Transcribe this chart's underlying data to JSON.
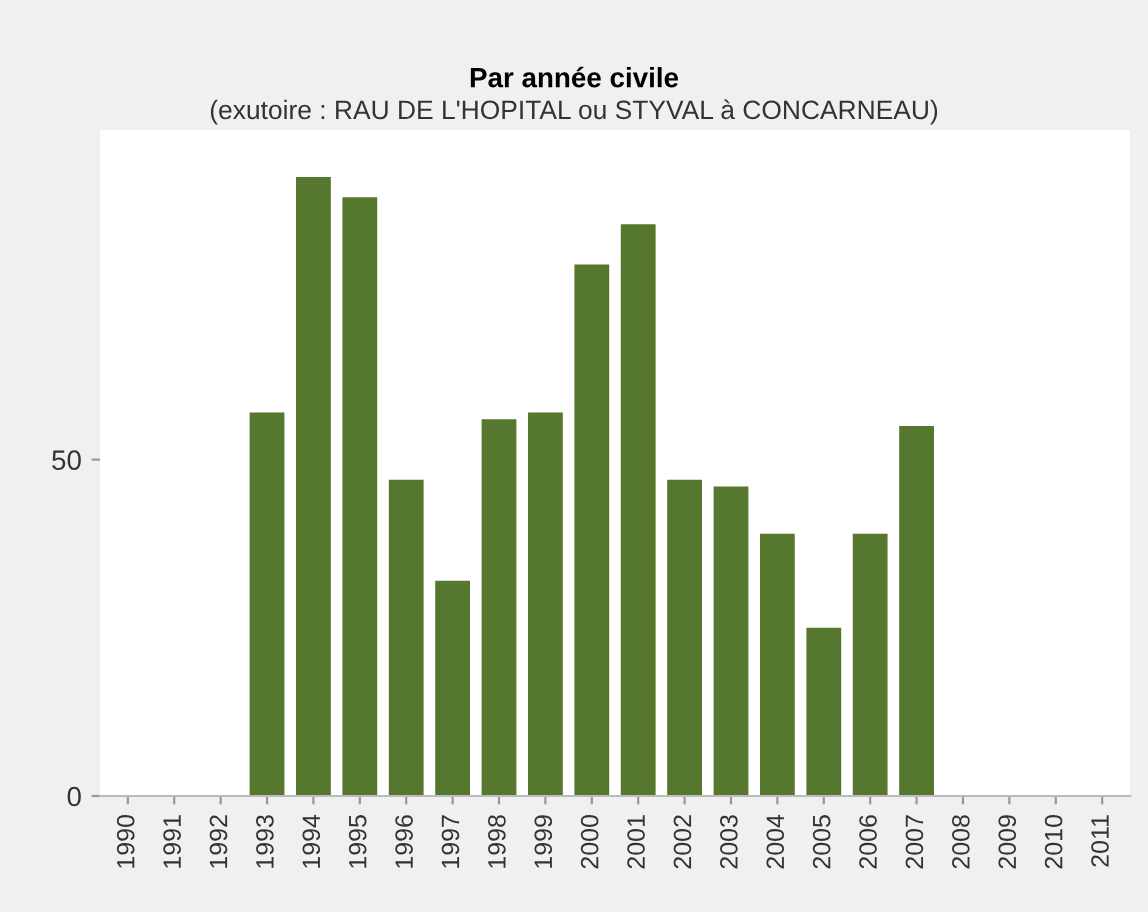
{
  "chart_data": {
    "type": "bar",
    "title": "Par année civile",
    "subtitle": "(exutoire : RAU DE L'HOPITAL ou STYVAL à CONCARNEAU)",
    "categories": [
      "1990",
      "1991",
      "1992",
      "1993",
      "1994",
      "1995",
      "1996",
      "1997",
      "1998",
      "1999",
      "2000",
      "2001",
      "2002",
      "2003",
      "2004",
      "2005",
      "2006",
      "2007",
      "2008",
      "2009",
      "2010",
      "2011"
    ],
    "values": [
      null,
      null,
      null,
      57,
      92,
      89,
      47,
      32,
      56,
      57,
      79,
      85,
      47,
      46,
      39,
      25,
      39,
      55,
      null,
      null,
      null,
      null
    ],
    "color": "#56772e",
    "ylim": [
      0,
      99
    ],
    "yticks": [
      0,
      50
    ],
    "grid": false
  }
}
